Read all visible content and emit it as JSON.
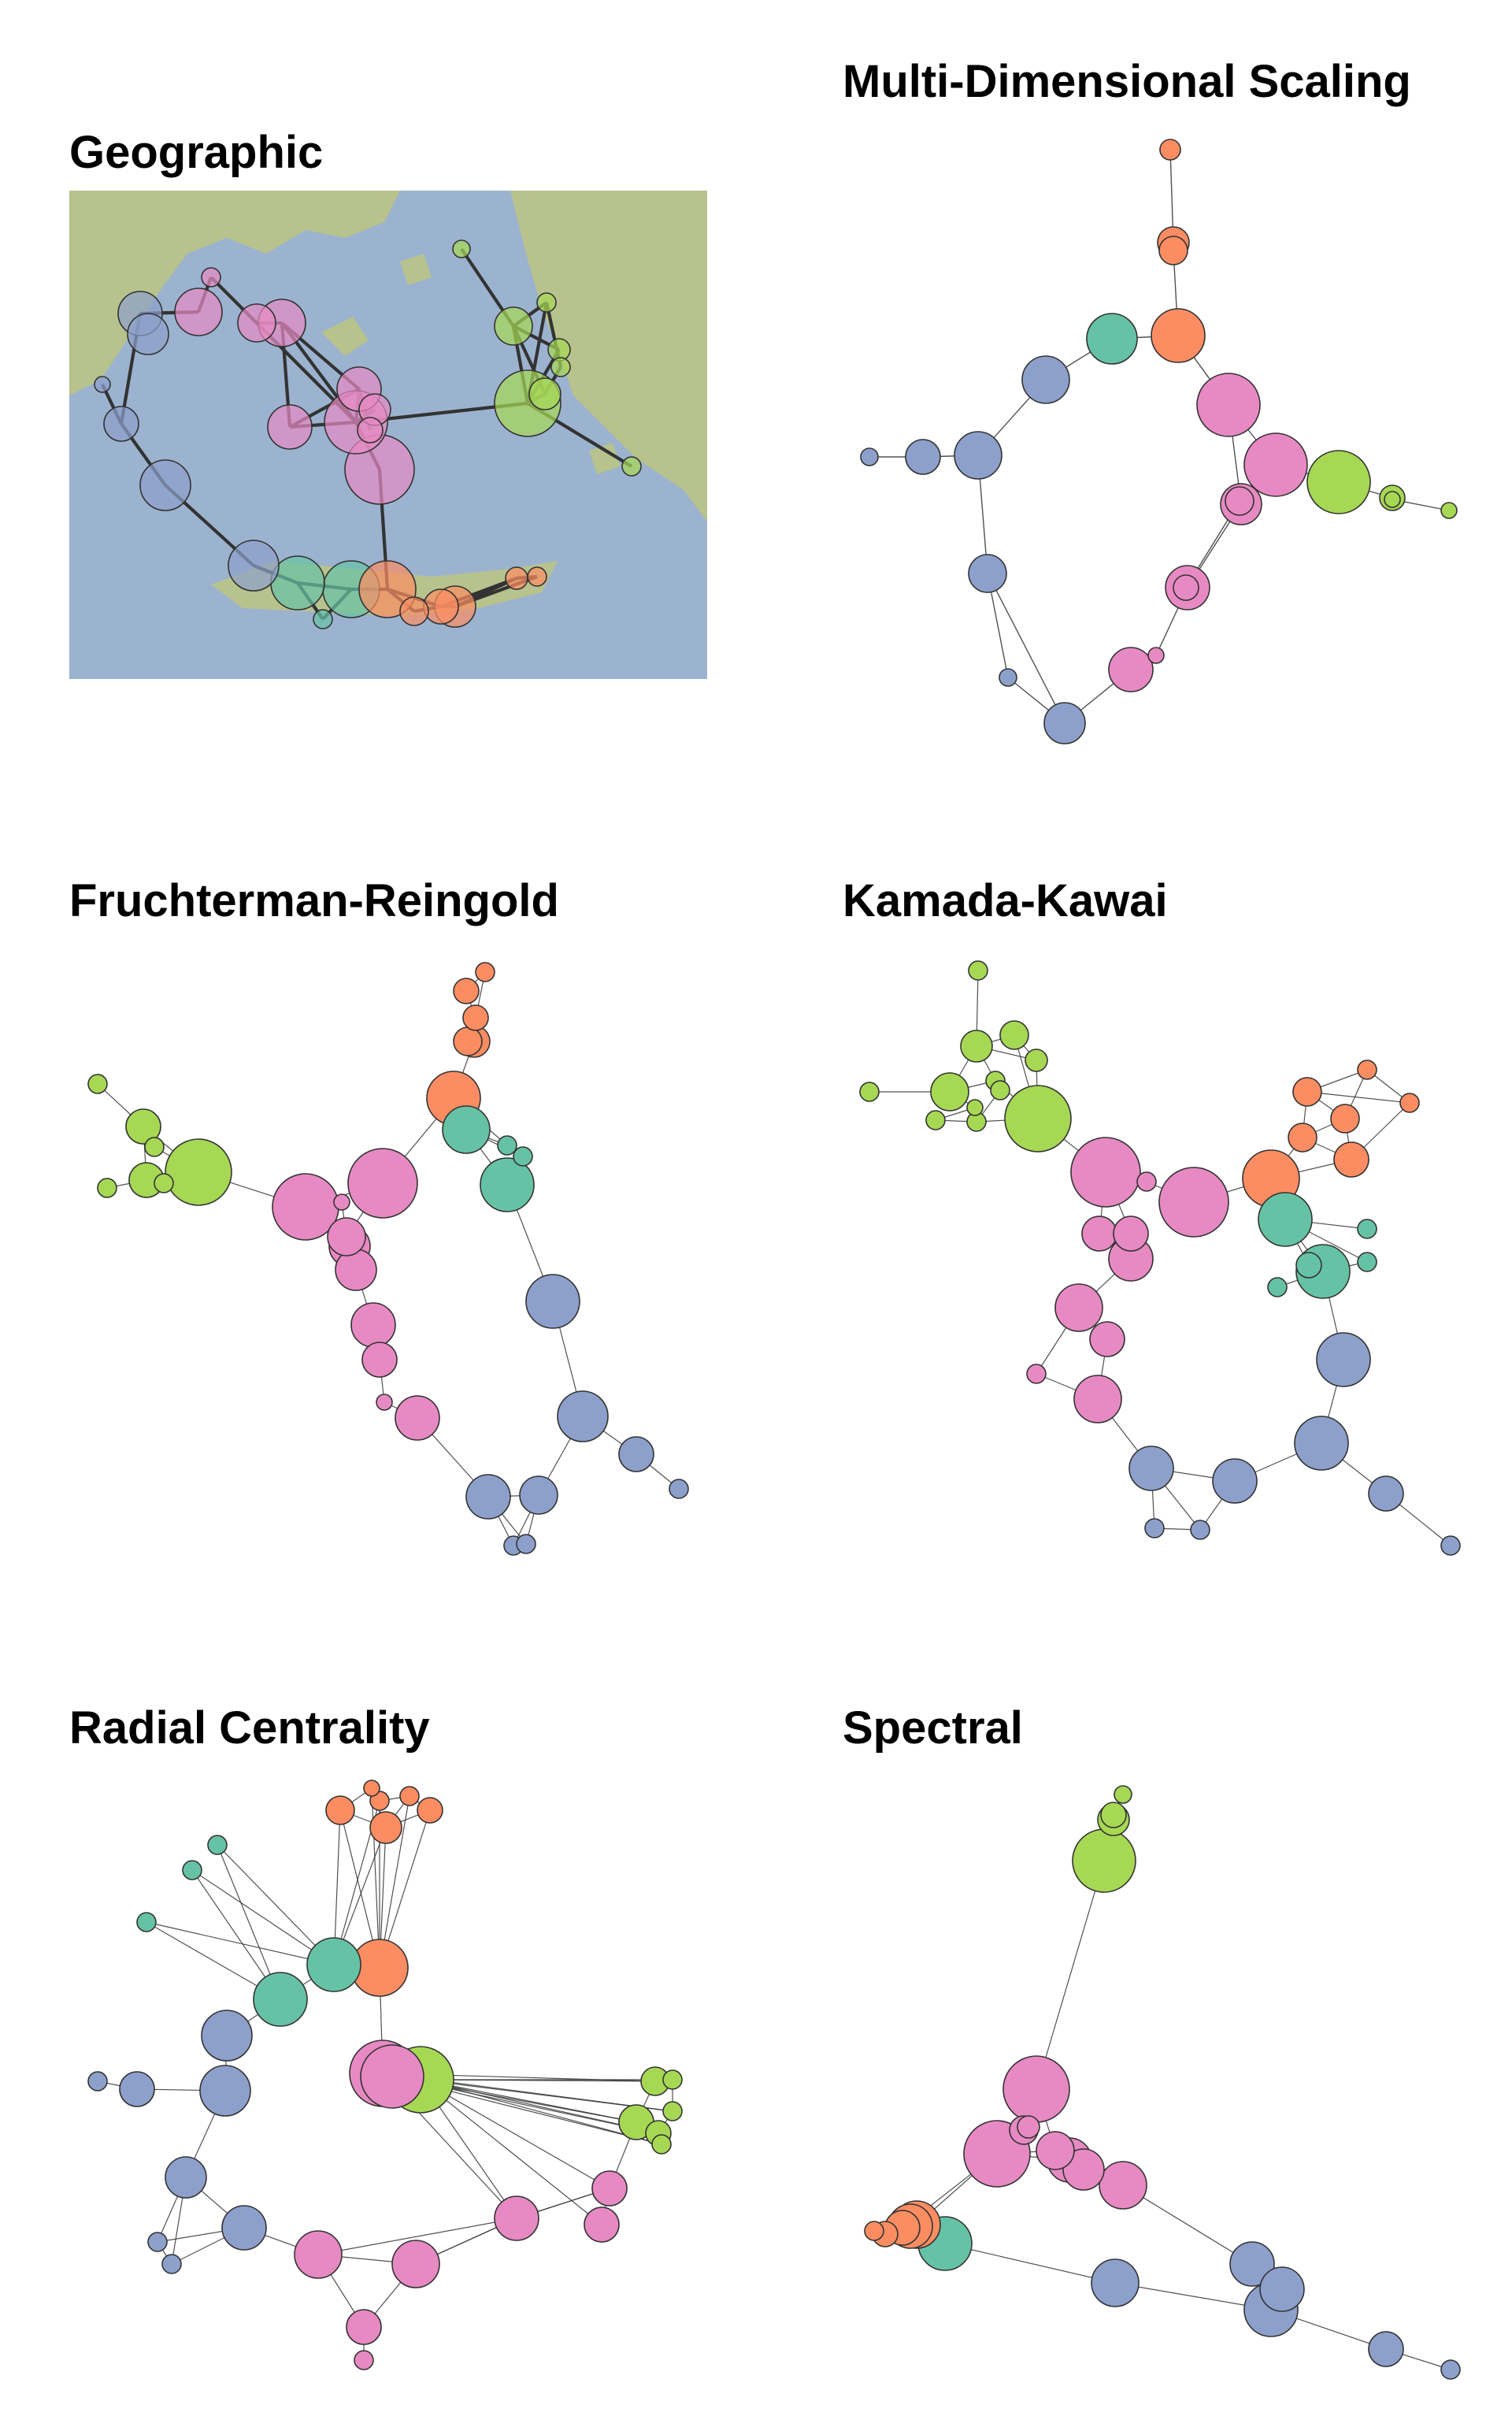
{
  "panels": [
    {
      "id": "geographic",
      "title": "Geographic"
    },
    {
      "id": "mds",
      "title": "Multi-Dimensional Scaling"
    },
    {
      "id": "fr",
      "title": "Fruchterman-Reingold"
    },
    {
      "id": "kk",
      "title": "Kamada-Kawai"
    },
    {
      "id": "radial",
      "title": "Radial Centrality"
    },
    {
      "id": "spectral",
      "title": "Spectral"
    }
  ],
  "colors": {
    "blue": "#8da0cb",
    "pink": "#e78ac3",
    "green": "#a6d854",
    "teal": "#66c2a5",
    "orange": "#fc8d62",
    "sea": "#9bb3cf",
    "land": "#b9c48f",
    "edge": "#333333"
  }
}
